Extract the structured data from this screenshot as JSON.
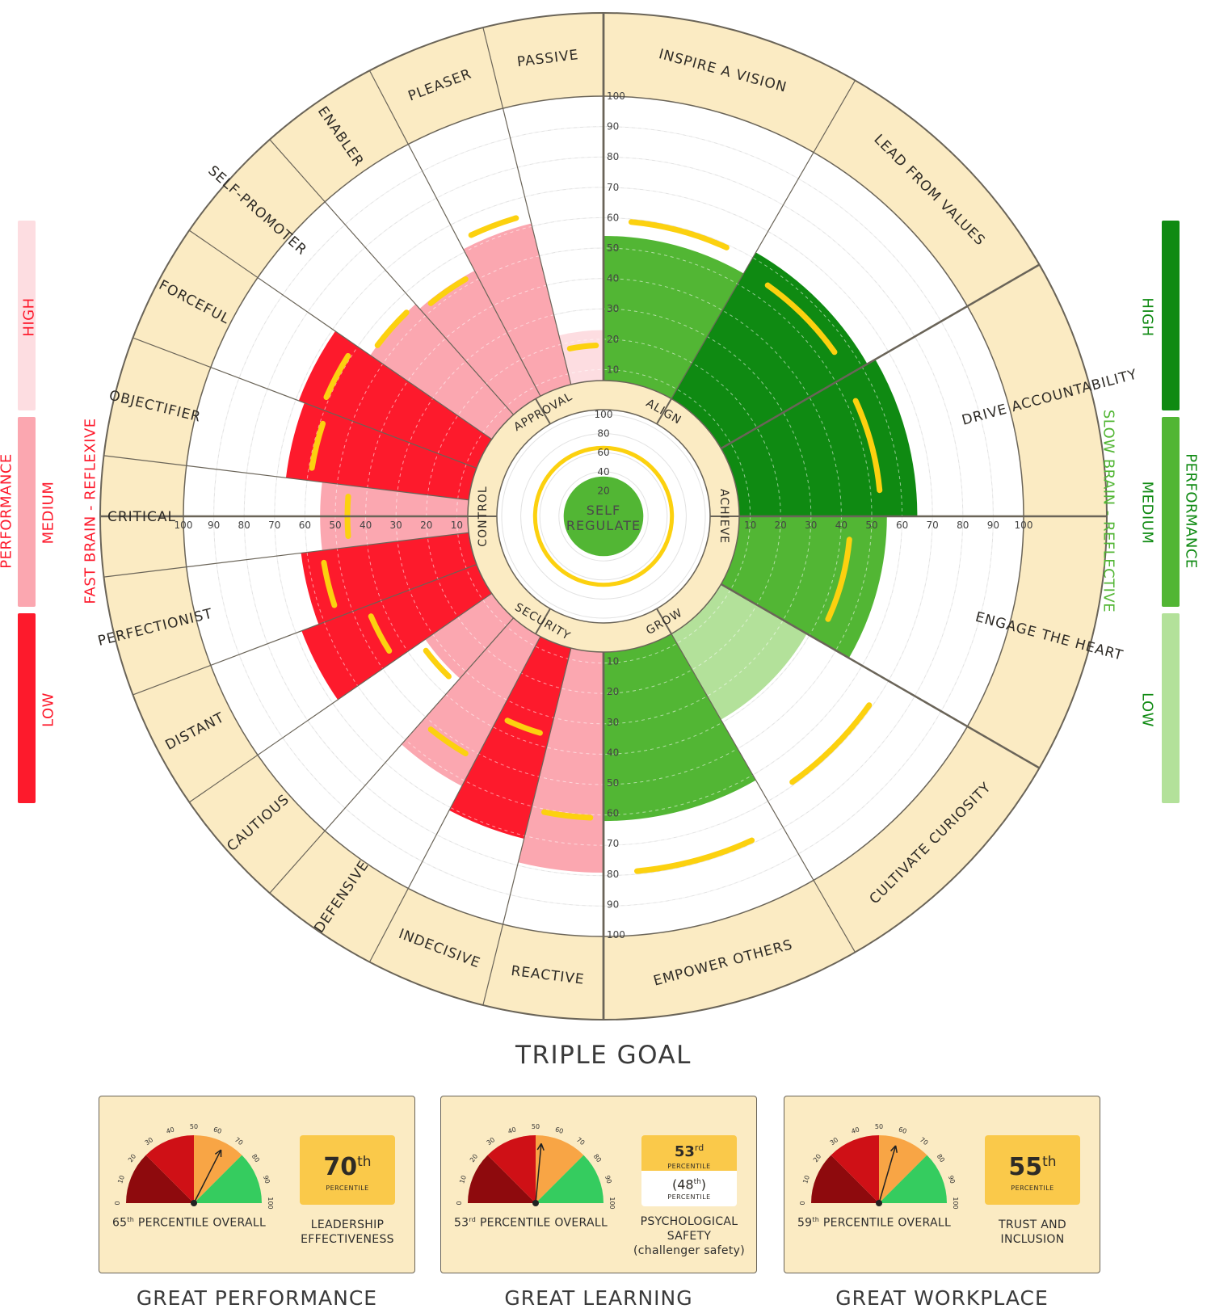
{
  "chart_data": {
    "type": "radial-bar",
    "center_label": "SELF REGULATE",
    "center_value": 35,
    "center_target": 65,
    "inner_ticks": [
      "100",
      "80",
      "60",
      "40",
      "20"
    ],
    "radial_ticks": [
      "10",
      "20",
      "30",
      "40",
      "50",
      "60",
      "70",
      "80",
      "90",
      "100"
    ],
    "inner_ring": [
      {
        "label": "APPROVAL",
        "side": "left"
      },
      {
        "label": "ALIGN",
        "side": "right"
      },
      {
        "label": "ACHIEVE",
        "side": "right"
      },
      {
        "label": "GROW",
        "side": "right"
      },
      {
        "label": "SECURITY",
        "side": "left"
      },
      {
        "label": "CONTROL",
        "side": "left"
      }
    ],
    "segments": [
      {
        "label": "INSPIRE A VISION",
        "value": 54,
        "target": 59,
        "level": "medium"
      },
      {
        "label": "LEAD FROM VALUES",
        "value": 62,
        "target": 55,
        "level": "high"
      },
      {
        "label": "DRIVE ACCOUNTABILITY",
        "value": 65,
        "target": 53,
        "level": "high"
      },
      {
        "label": "ENGAGE THE HEART",
        "value": 55,
        "target": 43,
        "level": "medium"
      },
      {
        "label": "CULTIVATE CURIOSITY",
        "value": 39,
        "target": 69,
        "level": "low"
      },
      {
        "label": "EMPOWER OTHERS",
        "value": 62,
        "target": 79,
        "level": "medium"
      },
      {
        "label": "REACTIVE",
        "value": 79,
        "target": 61,
        "level": "medium"
      },
      {
        "label": "INDECISIVE",
        "value": 71,
        "target": 36,
        "level": "low"
      },
      {
        "label": "DEFENSIVE",
        "value": 62,
        "target": 52,
        "level": "medium"
      },
      {
        "label": "CAUTIOUS",
        "value": 33,
        "target": 35,
        "level": "medium"
      },
      {
        "label": "DISTANT",
        "value": 68,
        "target": 45,
        "level": "low"
      },
      {
        "label": "PERFECTIONIST",
        "value": 62,
        "target": 55,
        "level": "low"
      },
      {
        "label": "CRITICAL",
        "value": 55,
        "target": 46,
        "level": "medium"
      },
      {
        "label": "OBJECTIFIER",
        "value": 67,
        "target": 59,
        "level": "low"
      },
      {
        "label": "FORCEFUL",
        "value": 69,
        "target": 61,
        "level": "low"
      },
      {
        "label": "SELF-PROMOTER",
        "value": 55,
        "target": 55,
        "level": "medium"
      },
      {
        "label": "ENABLER",
        "value": 53,
        "target": 52,
        "level": "medium"
      },
      {
        "label": "PLEASER",
        "value": 61,
        "target": 64,
        "level": "medium"
      },
      {
        "label": "PASSIVE",
        "value": 23,
        "target": 18,
        "level": "high"
      }
    ],
    "left_legend": {
      "title": "PERFORMANCE",
      "subtitle": "FAST BRAIN - REFLEXIVE",
      "levels": [
        "HIGH",
        "MEDIUM",
        "LOW"
      ]
    },
    "right_legend": {
      "title": "PERFORMANCE",
      "subtitle": "SLOW BRAIN - REFLECTIVE",
      "levels": [
        "HIGH",
        "MEDIUM",
        "LOW"
      ]
    },
    "colors": {
      "red": {
        "high": "#fddde1",
        "medium": "#fba7b0",
        "low": "#fd1a2c"
      },
      "green": {
        "high": "#0f8a12",
        "medium": "#52b634",
        "low": "#b3e19a"
      },
      "target": "#fcd10f",
      "ring": "#fbebc3"
    }
  },
  "triple_goal": {
    "title": "TRIPLE GOAL",
    "gauge_ticks": [
      "0",
      "10",
      "20",
      "30",
      "40",
      "50",
      "60",
      "70",
      "80",
      "90",
      "100"
    ],
    "cards": [
      {
        "overall_num": "65",
        "overall_sup": "th",
        "overall_text": " PERCENTILE OVERALL",
        "needle_value": 65,
        "pct_num": "70",
        "pct_sup": "th",
        "pct_label": "PERCENTILE",
        "metric_line1": "LEADERSHIP",
        "metric_line2": "EFFECTIVENESS",
        "metric_line3": "",
        "footer": "GREAT PERFORMANCE"
      },
      {
        "overall_num": "53",
        "overall_sup": "rd",
        "overall_text": " PERCENTILE OVERALL",
        "needle_value": 53,
        "pct_num": "53",
        "pct_sup": "rd",
        "pct_label": "PERCENTILE",
        "sub_num": "(48",
        "sub_sup": "th",
        "sub_close": ")",
        "sub_label": "PERCENTILE",
        "metric_line1": "PSYCHOLOGICAL",
        "metric_line2": "SAFETY",
        "metric_line3": "(challenger safety)",
        "footer": "GREAT LEARNING"
      },
      {
        "overall_num": "59",
        "overall_sup": "th",
        "overall_text": " PERCENTILE OVERALL",
        "needle_value": 59,
        "pct_num": "55",
        "pct_sup": "th",
        "pct_label": "PERCENTILE",
        "metric_line1": "TRUST AND",
        "metric_line2": "INCLUSION",
        "metric_line3": "",
        "footer": "GREAT WORKPLACE"
      }
    ]
  }
}
